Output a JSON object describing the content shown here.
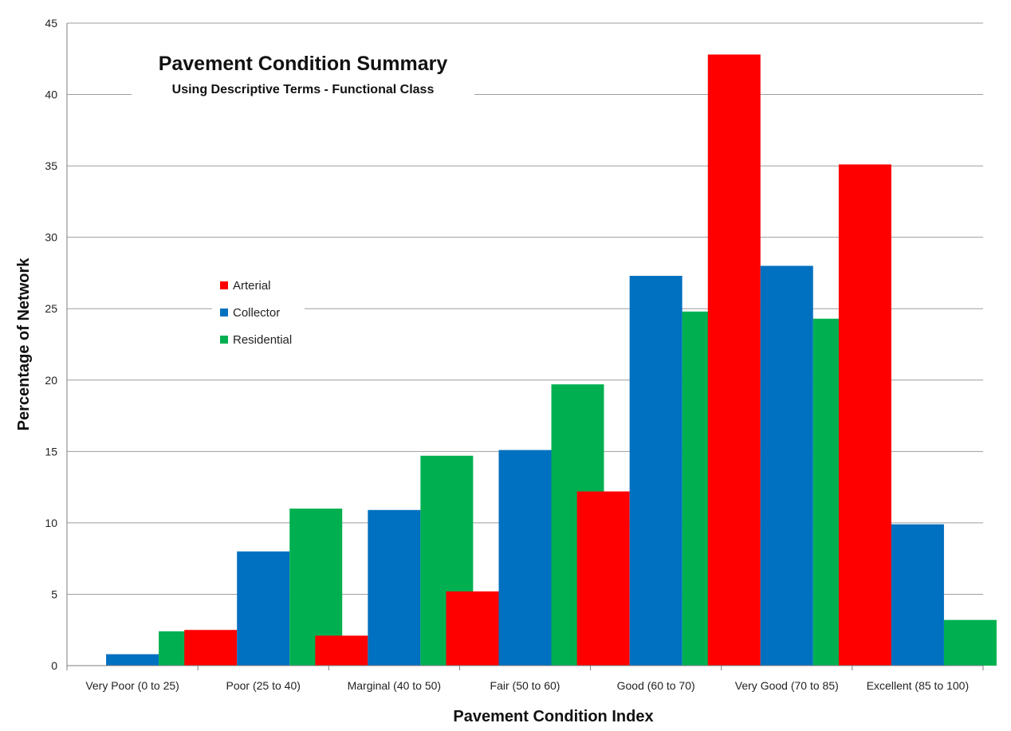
{
  "chart_data": {
    "type": "bar",
    "title": "Pavement Condition Summary",
    "subtitle": "Using Descriptive Terms - Functional Class",
    "xlabel": "Pavement Condition Index",
    "ylabel": "Percentage of Network",
    "ylim": [
      0,
      45
    ],
    "yticks": [
      0,
      5,
      10,
      15,
      20,
      25,
      30,
      35,
      40,
      45
    ],
    "grid": true,
    "legend_position": "center-left",
    "categories": [
      "Very Poor (0 to 25)",
      "Poor (25 to 40)",
      "Marginal (40 to 50)",
      "Fair (50 to 60)",
      "Good (60 to 70)",
      "Very Good (70 to 85)",
      "Excellent (85 to 100)"
    ],
    "series": [
      {
        "name": "Arterial",
        "color": "#ff0000",
        "values": [
          0,
          2.5,
          2.1,
          5.2,
          12.2,
          42.8,
          35.1
        ]
      },
      {
        "name": "Collector",
        "color": "#0070c0",
        "values": [
          0.8,
          8.0,
          10.9,
          15.1,
          27.3,
          28.0,
          9.9
        ]
      },
      {
        "name": "Residential",
        "color": "#00b050",
        "values": [
          2.4,
          11.0,
          14.7,
          19.7,
          24.8,
          24.3,
          3.2
        ]
      }
    ]
  }
}
